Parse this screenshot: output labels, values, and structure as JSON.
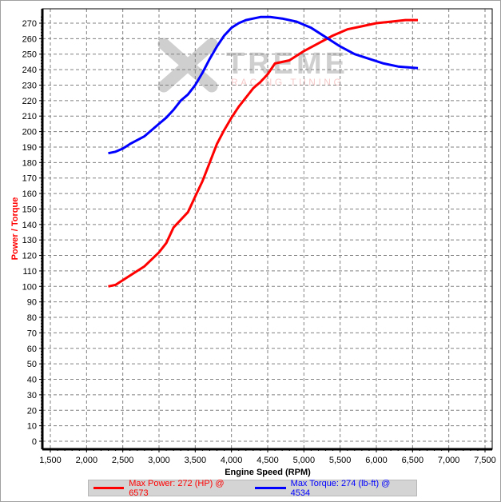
{
  "chart_data": {
    "type": "line",
    "title": "",
    "xlabel": "Engine Speed (RPM)",
    "ylabel": "Power / Torque",
    "xlim": [
      1400,
      7600
    ],
    "ylim": [
      -5,
      280
    ],
    "grid": true,
    "x_ticks": [
      1500,
      2000,
      2500,
      3000,
      3500,
      4000,
      4500,
      5000,
      5500,
      6000,
      6500,
      7000,
      7500
    ],
    "x_tick_labels": [
      "1,500",
      "2,000",
      "2,500",
      "3,000",
      "3,500",
      "4,000",
      "4,500",
      "5,000",
      "5,500",
      "6,000",
      "6,500",
      "7,000",
      "7,500"
    ],
    "y_ticks": [
      0,
      10,
      20,
      30,
      40,
      50,
      60,
      70,
      80,
      90,
      100,
      110,
      120,
      130,
      140,
      150,
      160,
      170,
      180,
      190,
      200,
      210,
      220,
      230,
      240,
      250,
      260,
      270
    ],
    "legend_position": "bottom",
    "series": [
      {
        "name": "Max Power: 272 (HP) @ 6573",
        "color": "#ff0000",
        "x": [
          2300,
          2400,
          2600,
          2800,
          3000,
          3100,
          3200,
          3300,
          3400,
          3500,
          3600,
          3700,
          3800,
          3900,
          4000,
          4100,
          4200,
          4300,
          4400,
          4500,
          4600,
          4800,
          5000,
          5200,
          5400,
          5600,
          5800,
          6000,
          6200,
          6400,
          6573
        ],
        "y": [
          100,
          101,
          107,
          113,
          122,
          128,
          138,
          143,
          148,
          158,
          168,
          180,
          192,
          201,
          209,
          216,
          222,
          228,
          232,
          237,
          244,
          246,
          252,
          257,
          262,
          266,
          268,
          270,
          271,
          272,
          272
        ]
      },
      {
        "name": "Max Torque: 274 (lb-ft) @ 4534",
        "color": "#0000ff",
        "x": [
          2300,
          2400,
          2500,
          2600,
          2800,
          3000,
          3100,
          3200,
          3300,
          3400,
          3500,
          3600,
          3700,
          3800,
          3900,
          4000,
          4100,
          4200,
          4300,
          4400,
          4534,
          4700,
          4900,
          5100,
          5300,
          5500,
          5700,
          5900,
          6100,
          6300,
          6573
        ],
        "y": [
          186,
          187,
          189,
          192,
          197,
          205,
          209,
          214,
          220,
          224,
          230,
          238,
          247,
          255,
          262,
          267,
          270,
          272,
          273,
          274,
          274,
          273,
          271,
          267,
          261,
          255,
          250,
          247,
          244,
          242,
          241
        ]
      }
    ]
  },
  "watermark": {
    "brand": "TREME",
    "tagline": "RACING TUNING"
  },
  "legend": {
    "power_label": "Max Power: 272 (HP) @ 6573",
    "torque_label": "Max Torque: 274 (lb-ft) @ 4534",
    "power_color": "#ff0000",
    "torque_color": "#0000ff"
  }
}
